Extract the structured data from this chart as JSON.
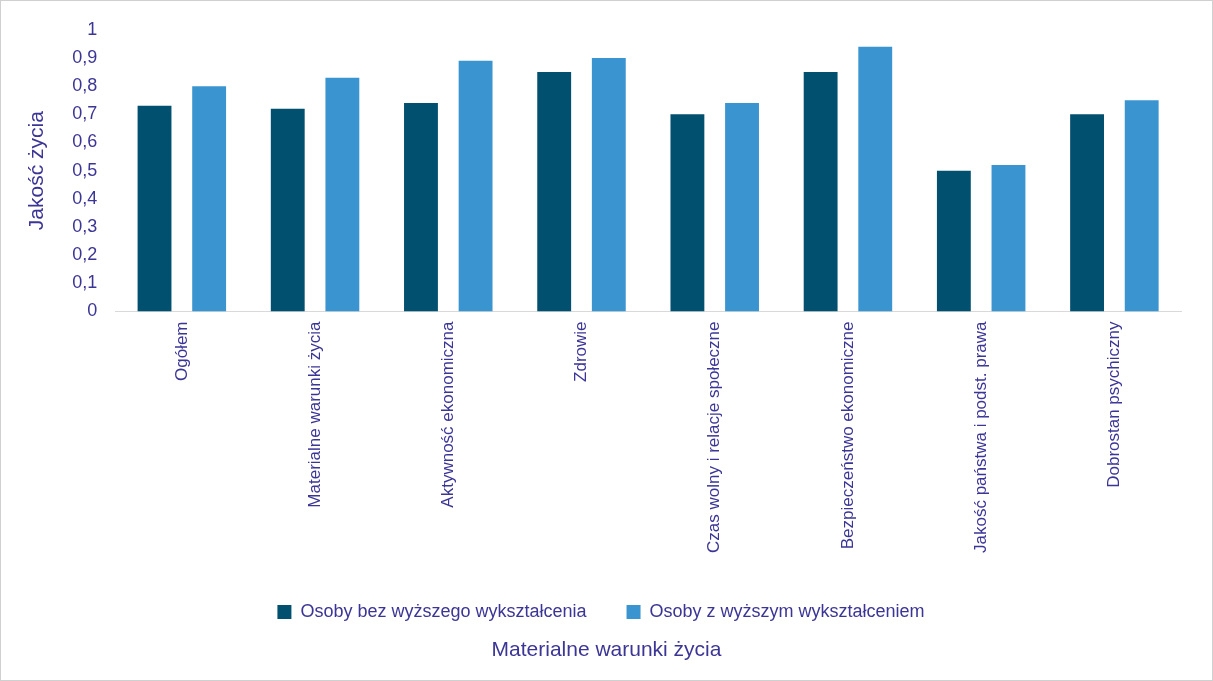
{
  "chart_data": {
    "type": "bar",
    "xlabel": "Materialne warunki życia",
    "ylabel": "Jakość życia",
    "categories": [
      "Ogółem",
      "Materialne warunki życia",
      "Aktywność ekonomiczna",
      "Zdrowie",
      "Czas wolny i relacje społeczne",
      "Bezpieczeństwo ekonomiczne",
      "Jakość państwa i podst. prawa",
      "Dobrostan psychiczny"
    ],
    "series": [
      {
        "name": "Osoby bez wyższego wykształcenia",
        "color": "#02506f",
        "values": [
          0.73,
          0.72,
          0.74,
          0.85,
          0.7,
          0.85,
          0.5,
          0.7
        ]
      },
      {
        "name": "Osoby z wyższym wykształceniem",
        "color": "#3a94d0",
        "values": [
          0.8,
          0.83,
          0.89,
          0.9,
          0.74,
          0.94,
          0.52,
          0.75
        ]
      }
    ],
    "ylim": [
      0,
      1
    ],
    "yticks": [
      {
        "value": 0,
        "label": "0"
      },
      {
        "value": 0.1,
        "label": "0,1"
      },
      {
        "value": 0.2,
        "label": "0,2"
      },
      {
        "value": 0.3,
        "label": "0,3"
      },
      {
        "value": 0.4,
        "label": "0,4"
      },
      {
        "value": 0.5,
        "label": "0,5"
      },
      {
        "value": 0.6,
        "label": "0,6"
      },
      {
        "value": 0.7,
        "label": "0,7"
      },
      {
        "value": 0.8,
        "label": "0,8"
      },
      {
        "value": 0.9,
        "label": "0,9"
      },
      {
        "value": 1,
        "label": "1"
      }
    ],
    "grid": false,
    "legend": "bottom"
  }
}
